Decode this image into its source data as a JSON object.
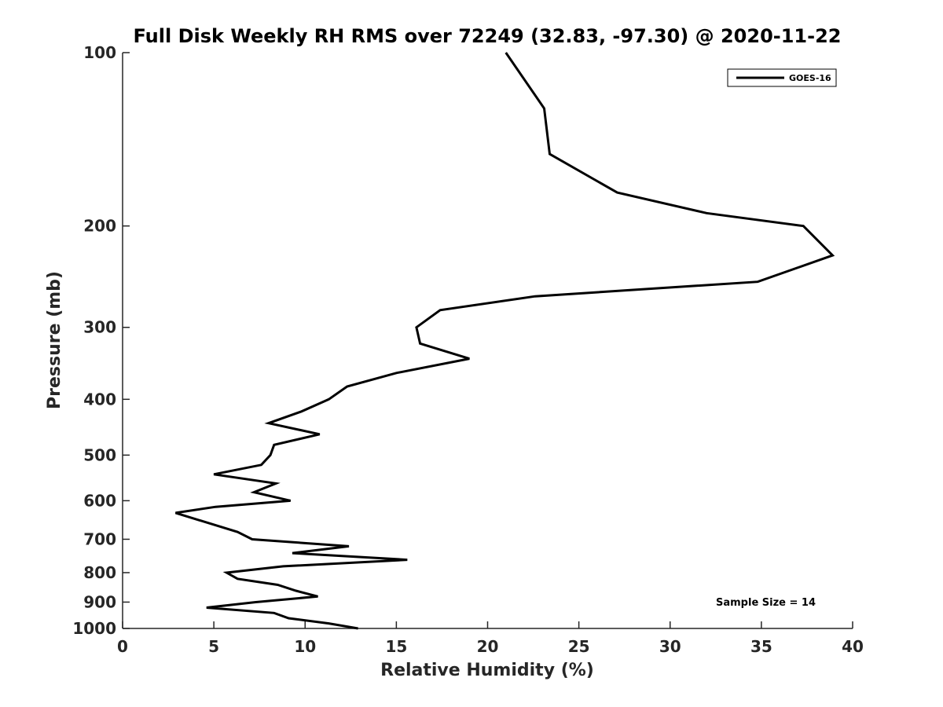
{
  "chart_data": {
    "type": "line",
    "title": "Full Disk Weekly RH RMS over 72249 (32.83, -97.30) @ 2020-11-22",
    "xlabel": "Relative Humidity (%)",
    "ylabel": "Pressure (mb)",
    "xlim": [
      0,
      40
    ],
    "ylim": [
      1000,
      100
    ],
    "y_scale": "log",
    "y_reversed": true,
    "x_ticks": [
      0,
      5,
      10,
      15,
      20,
      25,
      30,
      35,
      40
    ],
    "y_ticks": [
      100,
      200,
      300,
      400,
      500,
      600,
      700,
      800,
      900,
      1000
    ],
    "grid": false,
    "legend_position": "top-right",
    "series": [
      {
        "name": "GOES-16",
        "color": "#000000",
        "points": [
          [
            21.0,
            100
          ],
          [
            23.1,
            125
          ],
          [
            23.4,
            150
          ],
          [
            27.1,
            175
          ],
          [
            32.0,
            190
          ],
          [
            37.3,
            200
          ],
          [
            38.9,
            225
          ],
          [
            34.8,
            250
          ],
          [
            22.6,
            265
          ],
          [
            17.4,
            280
          ],
          [
            16.1,
            300
          ],
          [
            16.3,
            320
          ],
          [
            19.0,
            340
          ],
          [
            15.0,
            360
          ],
          [
            12.3,
            380
          ],
          [
            11.3,
            400
          ],
          [
            9.8,
            420
          ],
          [
            8.0,
            440
          ],
          [
            10.8,
            460
          ],
          [
            8.3,
            480
          ],
          [
            8.1,
            500
          ],
          [
            7.6,
            520
          ],
          [
            5.0,
            540
          ],
          [
            8.4,
            560
          ],
          [
            7.2,
            580
          ],
          [
            9.2,
            600
          ],
          [
            5.1,
            615
          ],
          [
            2.9,
            630
          ],
          [
            6.3,
            680
          ],
          [
            7.1,
            700
          ],
          [
            12.4,
            720
          ],
          [
            9.3,
            740
          ],
          [
            15.6,
            760
          ],
          [
            8.8,
            780
          ],
          [
            5.7,
            800
          ],
          [
            6.3,
            820
          ],
          [
            8.5,
            840
          ],
          [
            9.5,
            860
          ],
          [
            10.7,
            880
          ],
          [
            7.3,
            900
          ],
          [
            4.6,
            920
          ],
          [
            8.3,
            940
          ],
          [
            9.1,
            960
          ],
          [
            11.3,
            980
          ],
          [
            12.9,
            1000
          ]
        ]
      }
    ],
    "annotation": "Sample Size = 14"
  }
}
